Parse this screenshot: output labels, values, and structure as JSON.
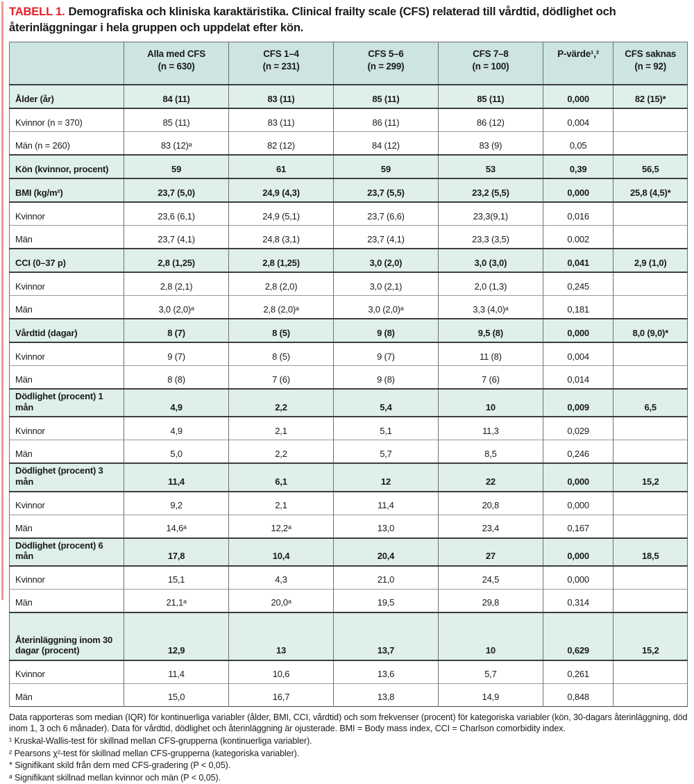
{
  "colors": {
    "accent_red": "#e32028",
    "left_bar_pink": "#f19a93",
    "header_teal": "#cde4e1",
    "category_row_teal": "#dff0ec"
  },
  "title": {
    "tag": "TABELL 1.",
    "text": "Demografiska och kliniska karaktäristika. Clinical frailty scale (CFS) relaterad till vårdtid, dödlighet och återinläggningar i hela gruppen och uppdelat efter kön."
  },
  "table": {
    "columns": [
      {
        "label": "",
        "sub": ""
      },
      {
        "label": "Alla med CFS",
        "sub": "(n = 630)"
      },
      {
        "label": "CFS 1–4",
        "sub": "(n = 231)"
      },
      {
        "label": "CFS 5–6",
        "sub": "(n = 299)"
      },
      {
        "label": "CFS 7–8",
        "sub": "(n = 100)"
      },
      {
        "label": "P-värde¹,²",
        "sub": ""
      },
      {
        "label": "CFS saknas",
        "sub": "(n = 92)"
      }
    ],
    "rows": [
      {
        "label": "Ålder (år)",
        "type": "category",
        "tall": false,
        "values": [
          "84 (11)",
          "83 (11)",
          "85 (11)",
          "85 (11)",
          "0,000",
          "82 (15)*"
        ]
      },
      {
        "label": "Kvinnor (n = 370)",
        "type": "sub",
        "tall": false,
        "values": [
          "85 (11)",
          "83 (11)",
          "86 (11)",
          "86 (12)",
          "0,004",
          ""
        ]
      },
      {
        "label": "Män (n = 260)",
        "type": "sub",
        "tall": false,
        "values": [
          "83 (12)ᵃ",
          "82 (12)",
          "84 (12)",
          "83 (9)",
          "0,05",
          ""
        ]
      },
      {
        "label": "Kön (kvinnor, procent)",
        "type": "category",
        "tall": false,
        "values": [
          "59",
          "61",
          "59",
          "53",
          "0,39",
          "56,5"
        ]
      },
      {
        "label": "BMI (kg/m²)",
        "type": "category",
        "tall": false,
        "values": [
          "23,7 (5,0)",
          "24,9 (4,3)",
          "23,7 (5,5)",
          "23,2 (5,5)",
          "0,000",
          "25,8 (4,5)*"
        ]
      },
      {
        "label": "Kvinnor",
        "type": "sub",
        "tall": false,
        "values": [
          "23,6 (6,1)",
          "24,9 (5,1)",
          "23,7 (6,6)",
          "23,3(9,1)",
          "0,016",
          ""
        ]
      },
      {
        "label": "Män",
        "type": "sub",
        "tall": false,
        "values": [
          "23,7 (4,1)",
          "24,8 (3,1)",
          "23,7 (4,1)",
          "23,3 (3,5)",
          "0.002",
          ""
        ]
      },
      {
        "label": "CCI (0–37 p)",
        "type": "category",
        "tall": false,
        "values": [
          "2,8 (1,25)",
          "2,8 (1,25)",
          "3,0 (2,0)",
          "3,0 (3,0)",
          "0,041",
          "2,9 (1,0)"
        ]
      },
      {
        "label": "Kvinnor",
        "type": "sub",
        "tall": false,
        "values": [
          "2,8 (2,1)",
          "2,8 (2,0)",
          "3,0 (2,1)",
          "2,0 (1,3)",
          "0,245",
          ""
        ]
      },
      {
        "label": "Män",
        "type": "sub",
        "tall": false,
        "values": [
          "3,0 (2,0)ᵃ",
          "2,8 (2,0)ᵃ",
          "3,0 (2,0)ᵃ",
          "3,3 (4,0)ᵃ",
          "0,181",
          ""
        ]
      },
      {
        "label": "Vårdtid (dagar)",
        "type": "category",
        "tall": false,
        "values": [
          "8 (7)",
          "8 (5)",
          "9 (8)",
          "9,5 (8)",
          "0,000",
          "8,0 (9,0)*"
        ]
      },
      {
        "label": "Kvinnor",
        "type": "sub",
        "tall": false,
        "values": [
          "9 (7)",
          "8 (5)",
          "9 (7)",
          "11 (8)",
          "0,004",
          ""
        ]
      },
      {
        "label": "Män",
        "type": "sub",
        "tall": false,
        "values": [
          "8 (8)",
          "7 (6)",
          "9 (8)",
          "7 (6)",
          "0,014",
          ""
        ]
      },
      {
        "label": "Dödlighet (procent) 1 mån",
        "type": "category",
        "tall": false,
        "values": [
          "4,9",
          "2,2",
          "5,4",
          "10",
          "0,009",
          "6,5"
        ]
      },
      {
        "label": "Kvinnor",
        "type": "sub",
        "tall": false,
        "values": [
          "4,9",
          "2,1",
          "5,1",
          "11,3",
          "0,029",
          ""
        ]
      },
      {
        "label": "Män",
        "type": "sub",
        "tall": false,
        "values": [
          "5,0",
          "2,2",
          "5,7",
          "8,5",
          "0,246",
          ""
        ]
      },
      {
        "label": "Dödlighet (procent) 3 mån",
        "type": "category",
        "tall": false,
        "values": [
          "11,4",
          "6,1",
          "12",
          "22",
          "0,000",
          "15,2"
        ]
      },
      {
        "label": "Kvinnor",
        "type": "sub",
        "tall": false,
        "values": [
          "9,2",
          "2,1",
          "11,4",
          "20,8",
          "0,000",
          ""
        ]
      },
      {
        "label": "Män",
        "type": "sub",
        "tall": false,
        "values": [
          "14,6ᵃ",
          "12,2ᵃ",
          "13,0",
          "23,4",
          "0,167",
          ""
        ]
      },
      {
        "label": "Dödlighet (procent) 6 mån",
        "type": "category",
        "tall": false,
        "values": [
          "17,8",
          "10,4",
          "20,4",
          "27",
          "0,000",
          "18,5"
        ]
      },
      {
        "label": "Kvinnor",
        "type": "sub",
        "tall": false,
        "values": [
          "15,1",
          "4,3",
          "21,0",
          "24,5",
          "0,000",
          ""
        ]
      },
      {
        "label": "Män",
        "type": "sub",
        "tall": false,
        "values": [
          "21,1ᵃ",
          "20,0ᵃ",
          "19,5",
          "29,8",
          "0,314",
          ""
        ]
      },
      {
        "label": "Återinläggning inom 30 dagar (procent)",
        "type": "category",
        "tall": true,
        "values": [
          "12,9",
          "13",
          "13,7",
          "10",
          "0,629",
          "15,2"
        ]
      },
      {
        "label": "Kvinnor",
        "type": "sub",
        "tall": false,
        "values": [
          "11,4",
          "10,6",
          "13,6",
          "5,7",
          "0,261",
          ""
        ]
      },
      {
        "label": "Män",
        "type": "sub",
        "tall": false,
        "values": [
          "15,0",
          "16,7",
          "13,8",
          "14,9",
          "0,848",
          ""
        ]
      }
    ]
  },
  "footnotes": [
    "Data rapporteras som median (IQR) för kontinuerliga variabler (ålder, BMI, CCI, vårdtid) och som frekvenser (procent) för kategoriska variabler (kön, 30-dagars återinläggning, död inom 1, 3 och 6 månader). Data för vårdtid, dödlighet och återinläggning är ojusterade. BMI = Body mass index, CCI = Charlson comorbidity index.",
    "¹ Kruskal-Wallis-test för skillnad mellan CFS-grupperna (kontinuerliga variabler).",
    "² Pearsons χ²-test för skillnad mellan CFS-grupperna (kategoriska variabler).",
    "* Signifikant skild från dem med CFS-gradering (P < 0,05).",
    "ᵃ Signifikant skillnad mellan kvinnor och män (P < 0,05)."
  ]
}
